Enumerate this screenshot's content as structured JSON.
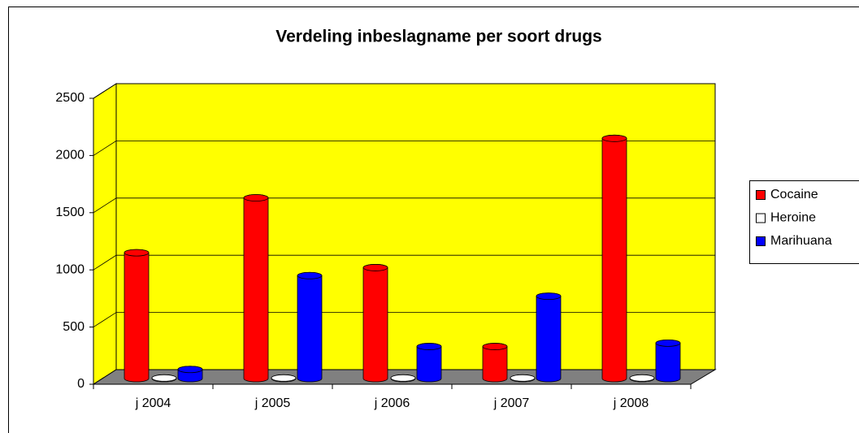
{
  "chart_data": {
    "type": "bar3d",
    "title": "Verdeling inbeslagname per soort drugs",
    "categories": [
      "j 2004",
      "j 2005",
      "j 2006",
      "j 2007",
      "j 2008"
    ],
    "series": [
      {
        "name": "Cocaine",
        "color": "#ff0000",
        "values": [
          1100,
          1580,
          970,
          280,
          2100
        ]
      },
      {
        "name": "Heroine",
        "color": "#ffffff",
        "values": [
          5,
          5,
          5,
          5,
          5
        ]
      },
      {
        "name": "Marihuana",
        "color": "#0000ff",
        "values": [
          80,
          900,
          280,
          720,
          310
        ]
      }
    ],
    "ylim": [
      0,
      2500
    ],
    "yticks": [
      0,
      500,
      1000,
      1500,
      2000,
      2500
    ],
    "grid": true,
    "legend": "right"
  }
}
